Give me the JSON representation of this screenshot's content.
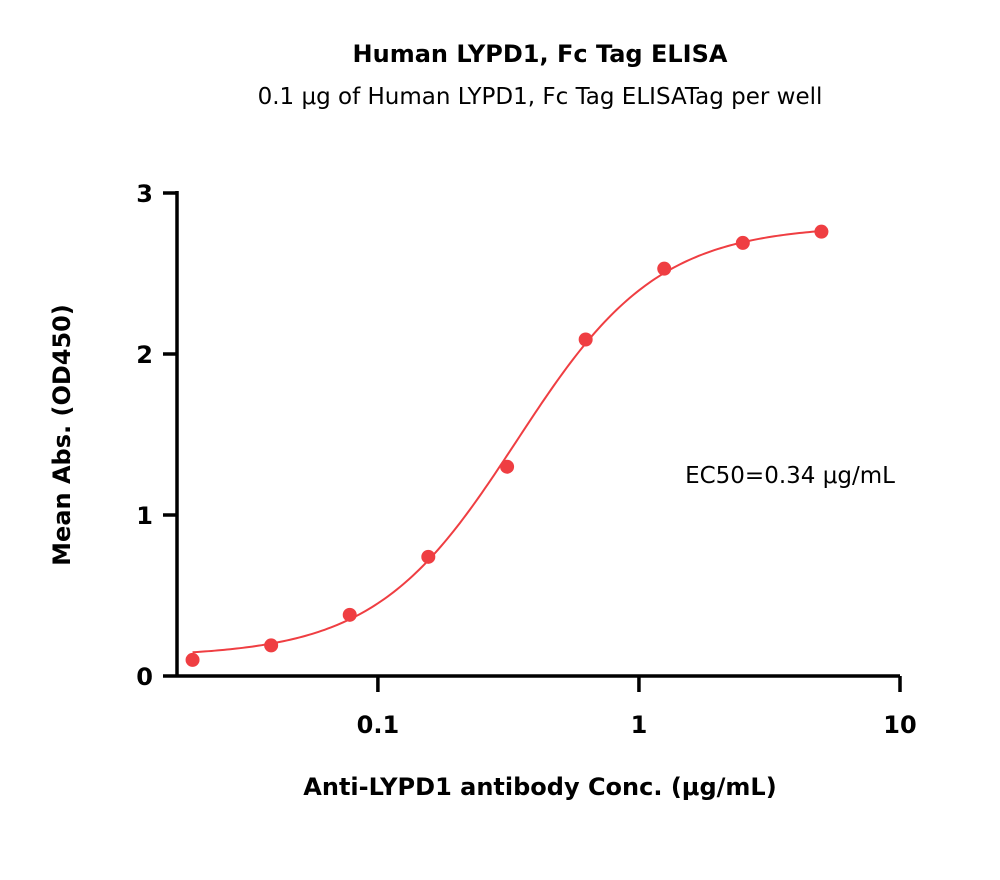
{
  "chart_data": {
    "type": "scatter",
    "title": "Human LYPD1, Fc Tag ELISA",
    "subtitle": "0.1 μg of Human LYPD1, Fc Tag ELISATag per well",
    "xlabel": "Anti-LYPD1 antibody Conc. (μg/mL)",
    "ylabel": "Mean Abs. (OD450)",
    "x_scale": "log",
    "xlim": [
      0.017,
      10
    ],
    "ylim": [
      0,
      3
    ],
    "x_ticks": [
      {
        "value": 0.1,
        "label": "0.1"
      },
      {
        "value": 1,
        "label": "1"
      },
      {
        "value": 10,
        "label": "10"
      }
    ],
    "y_ticks": [
      {
        "value": 0,
        "label": "0"
      },
      {
        "value": 1,
        "label": "1"
      },
      {
        "value": 2,
        "label": "2"
      },
      {
        "value": 3,
        "label": "3"
      }
    ],
    "series": [
      {
        "color": "#ef3e42",
        "x": [
          0.0195,
          0.039,
          0.078,
          0.156,
          0.3125,
          0.625,
          1.25,
          2.5,
          5.0
        ],
        "y": [
          0.1,
          0.19,
          0.38,
          0.74,
          1.3,
          2.09,
          2.53,
          2.69,
          2.76
        ],
        "fit": {
          "bottom": 0.12,
          "top": 2.8,
          "ec50": 0.34,
          "hill": 1.6
        }
      }
    ],
    "annotations": [
      {
        "text": "EC50=0.34 μg/mL"
      }
    ],
    "grid": false,
    "legend": "none"
  }
}
